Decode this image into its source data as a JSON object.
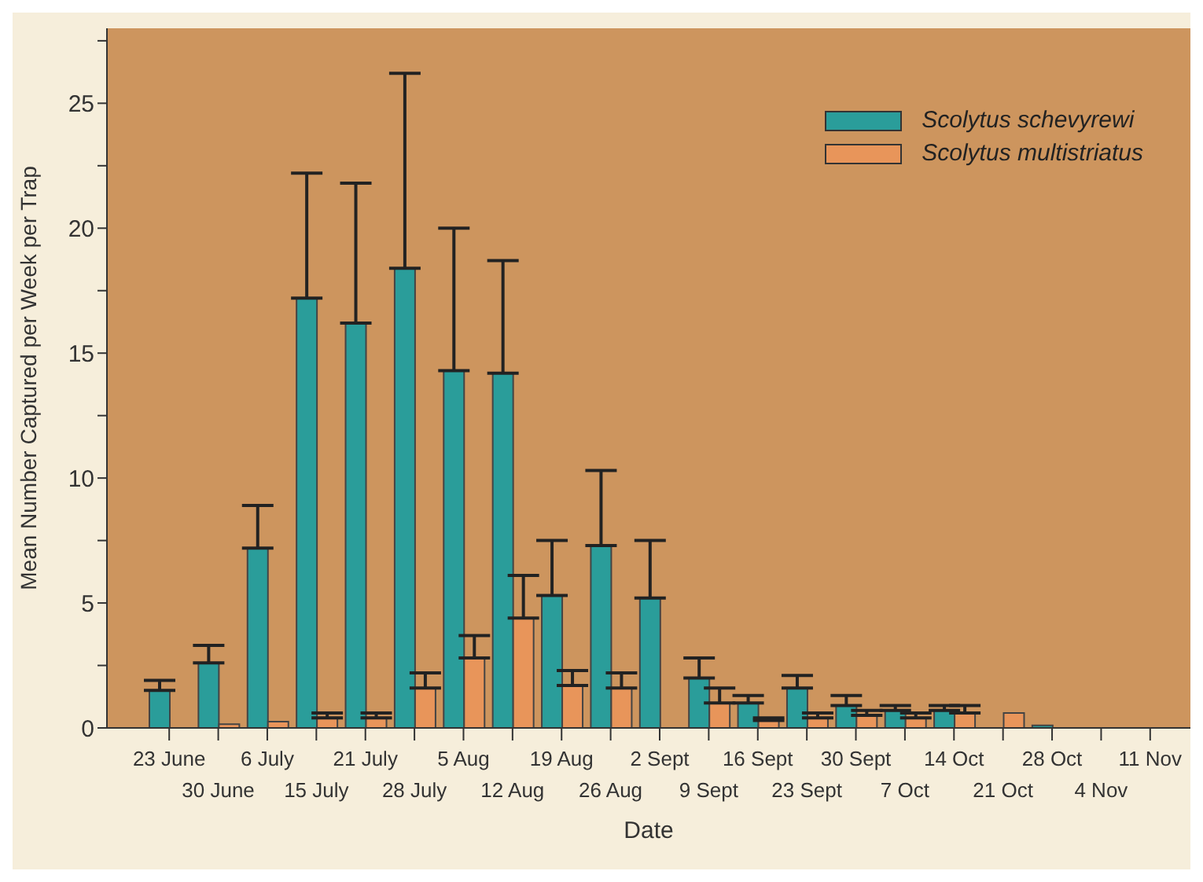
{
  "chart_data": {
    "type": "bar",
    "xlabel": "Date",
    "ylabel": "Mean Number Captured per Week per Trap",
    "categories": [
      "23 June",
      "30 June",
      "6 July",
      "15 July",
      "21 July",
      "28 July",
      "5 Aug",
      "12 Aug",
      "19 Aug",
      "26 Aug",
      "2 Sept",
      "9 Sept",
      "16 Sept",
      "23 Sept",
      "30 Sept",
      "7 Oct",
      "14 Oct",
      "21 Oct",
      "28 Oct",
      "4 Nov",
      "11 Nov"
    ],
    "series": [
      {
        "name": "Scolytus schevyrewi",
        "color": "#2a9d9a",
        "values": [
          1.5,
          2.6,
          7.2,
          17.2,
          16.2,
          18.4,
          14.3,
          14.2,
          5.3,
          7.3,
          5.2,
          2.0,
          1.0,
          1.6,
          0.9,
          0.7,
          0.7,
          null,
          0.1,
          null,
          null
        ],
        "errors": [
          [
            1.5,
            1.9
          ],
          [
            2.6,
            3.3
          ],
          [
            7.2,
            8.9
          ],
          [
            17.2,
            22.2
          ],
          [
            16.2,
            21.8
          ],
          [
            18.4,
            26.2
          ],
          [
            14.3,
            20.0
          ],
          [
            14.2,
            18.7
          ],
          [
            5.3,
            7.5
          ],
          [
            7.3,
            10.3
          ],
          [
            5.2,
            7.5
          ],
          [
            2.0,
            2.8
          ],
          [
            1.0,
            1.3
          ],
          [
            1.6,
            2.1
          ],
          [
            0.9,
            1.3
          ],
          [
            0.7,
            0.9
          ],
          [
            0.7,
            0.9
          ],
          null,
          null,
          null,
          null
        ]
      },
      {
        "name": "Scolytus multistriatus",
        "color": "#e8955a",
        "values": [
          null,
          0.15,
          0.25,
          0.4,
          0.4,
          1.6,
          2.8,
          4.4,
          1.7,
          1.6,
          null,
          1.0,
          0.3,
          0.4,
          0.5,
          0.4,
          0.6,
          0.6,
          null,
          null,
          null
        ],
        "errors": [
          null,
          null,
          null,
          [
            0.4,
            0.6
          ],
          [
            0.4,
            0.6
          ],
          [
            1.6,
            2.2
          ],
          [
            2.8,
            3.7
          ],
          [
            4.4,
            6.1
          ],
          [
            1.7,
            2.3
          ],
          [
            1.6,
            2.2
          ],
          null,
          [
            1.0,
            1.6
          ],
          [
            0.3,
            0.4
          ],
          [
            0.4,
            0.6
          ],
          [
            0.5,
            0.7
          ],
          [
            0.4,
            0.6
          ],
          [
            0.6,
            0.9
          ],
          null,
          null,
          null,
          null
        ]
      }
    ],
    "ylim": [
      0,
      28
    ],
    "yticks": [
      0,
      {
        "value": 2.5,
        "label": null
      },
      5,
      {
        "value": 7.5,
        "label": null
      },
      10,
      {
        "value": 12.5,
        "label": null
      },
      15,
      {
        "value": 17.5,
        "label": null
      },
      20,
      {
        "value": 22.5,
        "label": null
      },
      25,
      {
        "value": 27.5,
        "label": null
      }
    ],
    "legend": "top right"
  }
}
